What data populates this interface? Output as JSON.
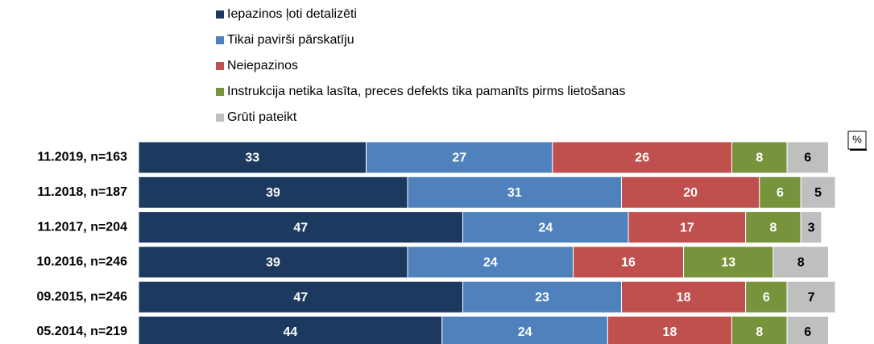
{
  "chart_data": {
    "type": "stacked_bar_horizontal",
    "unit_label": "%",
    "categories": [
      "11.2019, n=163",
      "11.2018, n=187",
      "11.2017, n=204",
      "10.2016, n=246",
      "09.2015, n=246",
      "05.2014, n=219"
    ],
    "series": [
      {
        "name": "Iepazinos ļoti detalizēti",
        "color": "#1c3a5f",
        "values": [
          33,
          39,
          47,
          39,
          47,
          44
        ]
      },
      {
        "name": "Tikai pavirši pārskatīju",
        "color": "#4f81bd",
        "values": [
          27,
          31,
          24,
          24,
          23,
          24
        ]
      },
      {
        "name": "Neiepazinos",
        "color": "#c0504d",
        "values": [
          26,
          20,
          17,
          16,
          18,
          18
        ]
      },
      {
        "name": "Instrukcija netika lasīta, preces defekts tika pamanīts pirms lietošanas",
        "color": "#77933c",
        "values": [
          8,
          6,
          8,
          13,
          6,
          8
        ]
      },
      {
        "name": "Grūti pateikt",
        "color": "#bfbfbf",
        "values": [
          6,
          5,
          3,
          8,
          7,
          6
        ]
      }
    ]
  }
}
